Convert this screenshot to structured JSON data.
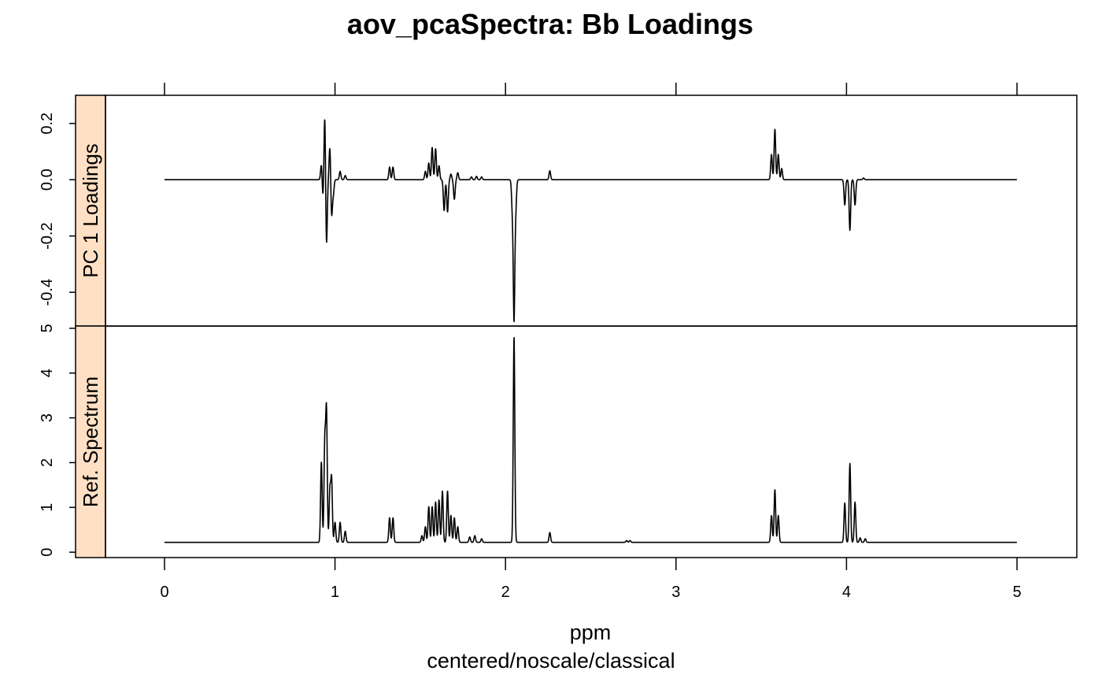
{
  "chart_data": {
    "type": "line",
    "title": "aov_pcaSpectra: Bb Loadings",
    "xlabel": "ppm",
    "sublabel": "centered/noscale/classical",
    "xlim": [
      -0.5,
      5.35
    ],
    "x_ticks": [
      0,
      1,
      2,
      3,
      4,
      5
    ],
    "x_tick_labels": [
      "0",
      "1",
      "2",
      "3",
      "4",
      "5"
    ],
    "strip_color": "#ffe0c4",
    "line_color": "#000000",
    "panels": [
      {
        "strip_label": "PC 1 Loadings",
        "ylim": [
          -0.52,
          0.3
        ],
        "y_ticks": [
          -0.4,
          -0.2,
          0.0,
          0.2
        ],
        "y_tick_labels": [
          "-0.4",
          "-0.2",
          "0.0",
          "0.2"
        ],
        "baseline": 0.0,
        "peaks": [
          [
            0.92,
            0.055
          ],
          [
            0.93,
            -0.07
          ],
          [
            0.94,
            0.24
          ],
          [
            0.95,
            -0.24
          ],
          [
            0.97,
            0.12
          ],
          [
            0.98,
            -0.13
          ],
          [
            0.99,
            -0.05
          ],
          [
            1.03,
            0.03
          ],
          [
            1.06,
            0.015
          ],
          [
            1.32,
            0.045
          ],
          [
            1.34,
            0.045
          ],
          [
            1.53,
            0.03
          ],
          [
            1.55,
            0.06
          ],
          [
            1.57,
            0.115
          ],
          [
            1.59,
            0.11
          ],
          [
            1.61,
            0.05
          ],
          [
            1.64,
            -0.11
          ],
          [
            1.66,
            -0.115
          ],
          [
            1.68,
            0.02
          ],
          [
            1.7,
            -0.07
          ],
          [
            1.72,
            0.025
          ],
          [
            1.8,
            0.01
          ],
          [
            1.83,
            0.012
          ],
          [
            1.86,
            0.01
          ],
          [
            2.04,
            -0.1
          ],
          [
            2.05,
            -0.49
          ],
          [
            2.06,
            -0.1
          ],
          [
            2.26,
            0.032
          ],
          [
            3.56,
            0.09
          ],
          [
            3.58,
            0.18
          ],
          [
            3.6,
            0.09
          ],
          [
            3.62,
            0.04
          ],
          [
            3.99,
            -0.09
          ],
          [
            4.02,
            -0.18
          ],
          [
            4.05,
            -0.09
          ],
          [
            4.1,
            0.006
          ]
        ]
      },
      {
        "strip_label": "Ref. Spectrum",
        "ylim": [
          -0.12,
          5.05
        ],
        "y_ticks": [
          0,
          1,
          2,
          3,
          4,
          5
        ],
        "y_tick_labels": [
          "0",
          "1",
          "2",
          "3",
          "4",
          "5"
        ],
        "baseline": 0.22,
        "peaks": [
          [
            0.92,
            1.8
          ],
          [
            0.94,
            2.2
          ],
          [
            0.95,
            2.9
          ],
          [
            0.97,
            1.15
          ],
          [
            0.98,
            1.4
          ],
          [
            1.0,
            0.45
          ],
          [
            1.03,
            0.45
          ],
          [
            1.06,
            0.25
          ],
          [
            1.32,
            0.55
          ],
          [
            1.34,
            0.55
          ],
          [
            1.51,
            0.15
          ],
          [
            1.53,
            0.35
          ],
          [
            1.55,
            0.8
          ],
          [
            1.57,
            0.8
          ],
          [
            1.59,
            0.9
          ],
          [
            1.61,
            0.95
          ],
          [
            1.63,
            1.15
          ],
          [
            1.66,
            1.15
          ],
          [
            1.68,
            0.6
          ],
          [
            1.7,
            0.55
          ],
          [
            1.72,
            0.35
          ],
          [
            1.79,
            0.12
          ],
          [
            1.82,
            0.15
          ],
          [
            1.86,
            0.08
          ],
          [
            2.05,
            4.6
          ],
          [
            2.26,
            0.22
          ],
          [
            2.71,
            0.04
          ],
          [
            2.73,
            0.04
          ],
          [
            3.56,
            0.6
          ],
          [
            3.58,
            1.18
          ],
          [
            3.6,
            0.6
          ],
          [
            3.99,
            0.88
          ],
          [
            4.02,
            1.76
          ],
          [
            4.05,
            0.9
          ],
          [
            4.08,
            0.1
          ],
          [
            4.11,
            0.08
          ]
        ]
      }
    ]
  }
}
